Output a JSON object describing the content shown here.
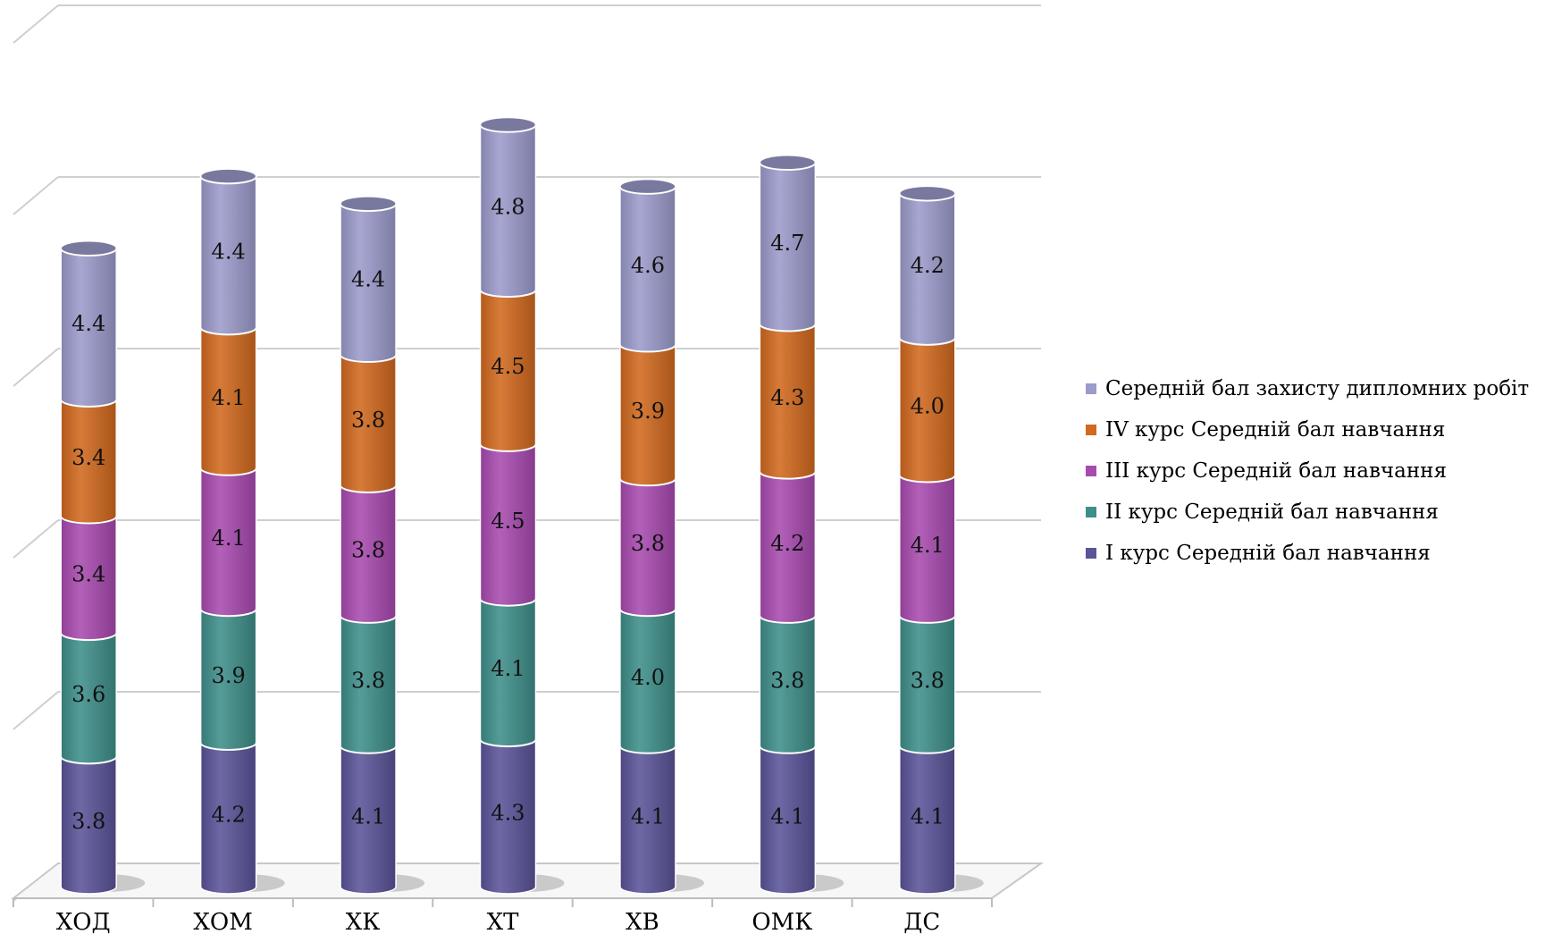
{
  "chart_data": {
    "type": "bar",
    "stacked": true,
    "style": "3d-cylinder",
    "categories": [
      "ХОД",
      "ХОМ",
      "ХК",
      "ХТ",
      "ХВ",
      "ОМК",
      "ДС"
    ],
    "series": [
      {
        "name": "І курс Середній бал навчання",
        "color": "#5a5499",
        "values": [
          3.8,
          4.2,
          4.1,
          4.3,
          4.1,
          4.1,
          4.1
        ]
      },
      {
        "name": "ІІ курс Середній бал навчання",
        "color": "#3e8e8a",
        "values": [
          3.6,
          3.9,
          3.8,
          4.1,
          4.0,
          3.8,
          3.8
        ]
      },
      {
        "name": "ІІІ курс Середній бал навчання",
        "color": "#a94ab0",
        "values": [
          3.4,
          4.1,
          3.8,
          4.5,
          3.8,
          4.2,
          4.1
        ]
      },
      {
        "name": "ІV курс Середній бал навчання",
        "color": "#d2691e",
        "values": [
          3.4,
          4.1,
          3.8,
          4.5,
          3.9,
          4.3,
          4.0
        ]
      },
      {
        "name": "Середній бал захисту дипломних робіт",
        "color": "#9b9bcc",
        "values": [
          4.4,
          4.4,
          4.4,
          4.8,
          4.6,
          4.7,
          4.2
        ]
      }
    ],
    "data_labels": [
      [
        "3.8",
        "4.2",
        "4.1",
        "4.3",
        "4.1",
        "4.1",
        "4.1"
      ],
      [
        "3.6",
        "3.9",
        "3.8",
        "4.1",
        "4.0",
        "3.8",
        "3.8"
      ],
      [
        "3.4",
        "4.1",
        "3.8",
        "4.5",
        "3.8",
        "4.2",
        "4.1"
      ],
      [
        "3.4",
        "4.1",
        "3.8",
        "4.5",
        "3.9",
        "4.3",
        "4.0"
      ],
      [
        "4.4",
        "4.4",
        "4.4",
        "4.8",
        "4.6",
        "4.7",
        "4.2"
      ]
    ],
    "ylim": [
      0,
      25
    ],
    "gridlines": true,
    "legend_position": "right",
    "title": "",
    "xlabel": "",
    "ylabel": ""
  }
}
